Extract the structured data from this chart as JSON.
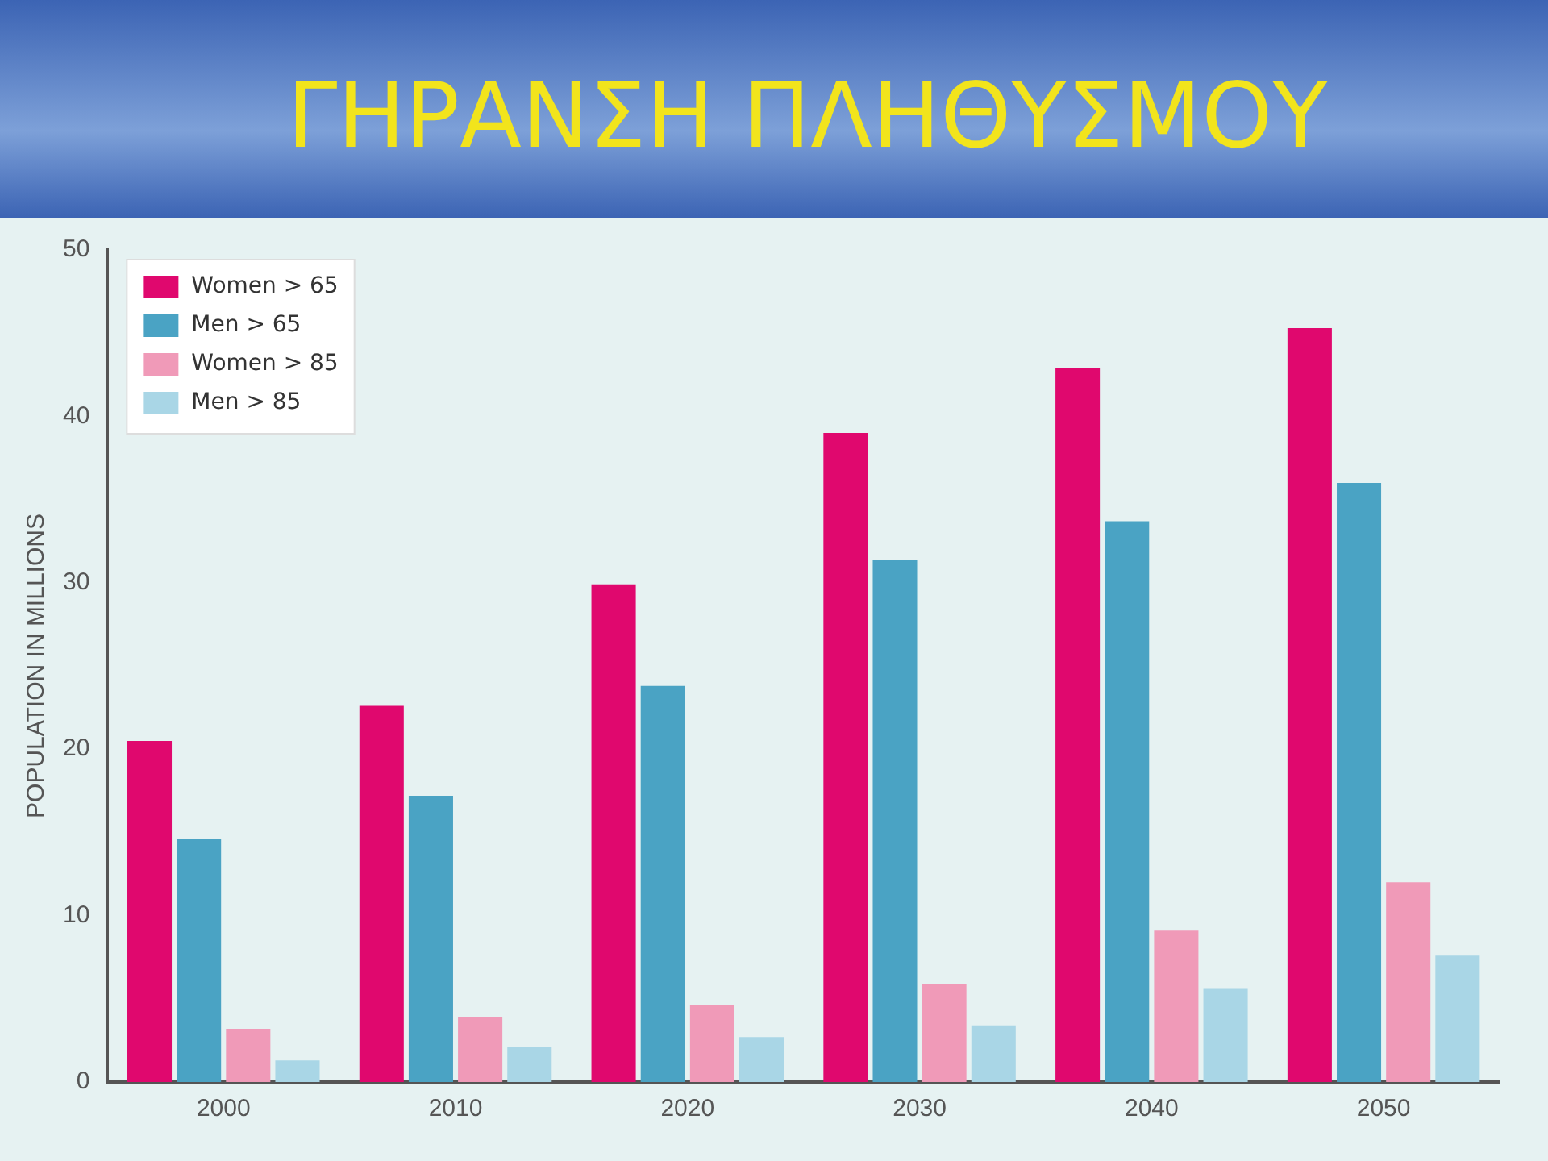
{
  "chart_data": {
    "type": "bar",
    "title": "ΓΗΡΑΝΣΗ ΠΛΗΘΥΣΜΟΥ",
    "ylabel": "POPULATION IN MILLIONS",
    "categories": [
      "2000",
      "2010",
      "2020",
      "2030",
      "2040",
      "2050"
    ],
    "series": [
      {
        "name": "Women > 65",
        "color": "#e0086e",
        "values": [
          20.5,
          22.6,
          29.9,
          39,
          42.9,
          45.3
        ]
      },
      {
        "name": "Men > 65",
        "color": "#4aa3c4",
        "values": [
          14.6,
          17.2,
          23.8,
          31.4,
          33.7,
          36
        ]
      },
      {
        "name": "Women > 85",
        "color": "#f09ab8",
        "values": [
          3.2,
          3.9,
          4.6,
          5.9,
          9.1,
          12
        ]
      },
      {
        "name": "Men > 85",
        "color": "#a9d6e6",
        "values": [
          1.3,
          2.1,
          2.7,
          3.4,
          5.6,
          7.6
        ]
      }
    ],
    "ylim": [
      0,
      50
    ],
    "yticks": [
      0,
      10,
      20,
      30,
      40,
      50
    ],
    "grid": false,
    "legend": "top left"
  }
}
